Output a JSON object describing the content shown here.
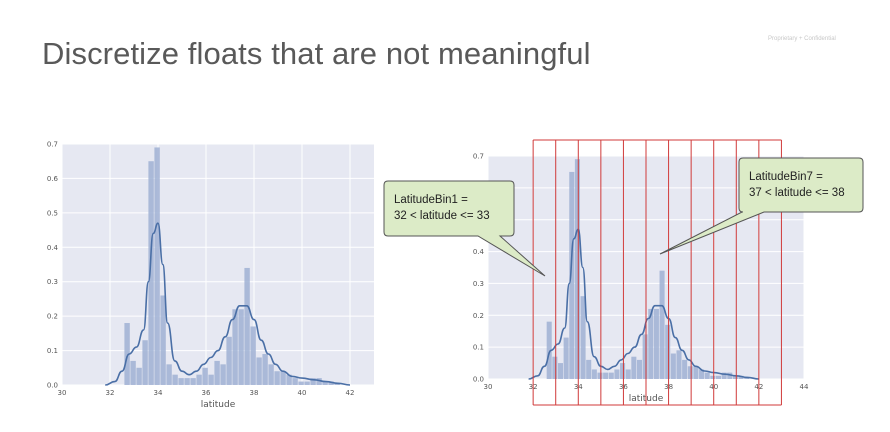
{
  "slide": {
    "title": "Discretize floats that are not meaningful",
    "confidential": "Proprietary + Confidential"
  },
  "colors": {
    "plot_bg": "#e6e8f2",
    "grid": "#ffffff",
    "bar": "#9fb0d4",
    "kde": "#4a6fa6",
    "bin_line": "#d03a3a",
    "callout_fill": "#dcebc7",
    "callout_stroke": "#555555"
  },
  "chart_data": [
    {
      "type": "bar",
      "title": "",
      "xlabel": "latitude",
      "ylabel": "",
      "xlim": [
        30,
        43
      ],
      "ylim": [
        0,
        0.7
      ],
      "xticks": [
        30,
        32,
        34,
        36,
        38,
        40,
        42
      ],
      "yticks": [
        0.0,
        0.1,
        0.2,
        0.3,
        0.4,
        0.5,
        0.6,
        0.7
      ],
      "grid": true,
      "bins": [
        {
          "left": 32.6,
          "height": 0.18
        },
        {
          "left": 32.85,
          "height": 0.07
        },
        {
          "left": 33.1,
          "height": 0.05
        },
        {
          "left": 33.35,
          "height": 0.13
        },
        {
          "left": 33.6,
          "height": 0.65
        },
        {
          "left": 33.85,
          "height": 0.69
        },
        {
          "left": 34.1,
          "height": 0.26
        },
        {
          "left": 34.35,
          "height": 0.06
        },
        {
          "left": 34.6,
          "height": 0.03
        },
        {
          "left": 34.85,
          "height": 0.02
        },
        {
          "left": 35.1,
          "height": 0.02
        },
        {
          "left": 35.35,
          "height": 0.02
        },
        {
          "left": 35.6,
          "height": 0.03
        },
        {
          "left": 35.85,
          "height": 0.05
        },
        {
          "left": 36.1,
          "height": 0.03
        },
        {
          "left": 36.35,
          "height": 0.07
        },
        {
          "left": 36.6,
          "height": 0.06
        },
        {
          "left": 36.85,
          "height": 0.14
        },
        {
          "left": 37.1,
          "height": 0.22
        },
        {
          "left": 37.35,
          "height": 0.22
        },
        {
          "left": 37.6,
          "height": 0.34
        },
        {
          "left": 37.85,
          "height": 0.17
        },
        {
          "left": 38.1,
          "height": 0.08
        },
        {
          "left": 38.35,
          "height": 0.09
        },
        {
          "left": 38.6,
          "height": 0.06
        },
        {
          "left": 38.85,
          "height": 0.04
        },
        {
          "left": 39.1,
          "height": 0.04
        },
        {
          "left": 39.35,
          "height": 0.03
        },
        {
          "left": 39.6,
          "height": 0.02
        },
        {
          "left": 39.85,
          "height": 0.01
        },
        {
          "left": 40.1,
          "height": 0.01
        },
        {
          "left": 40.35,
          "height": 0.02
        },
        {
          "left": 40.6,
          "height": 0.02
        },
        {
          "left": 40.85,
          "height": 0.01
        },
        {
          "left": 41.1,
          "height": 0.01
        },
        {
          "left": 41.35,
          "height": 0.005
        }
      ],
      "bin_width": 0.25,
      "kde": {
        "x": [
          31.8,
          32.2,
          32.5,
          32.8,
          33.1,
          33.4,
          33.6,
          33.8,
          34.0,
          34.2,
          34.4,
          34.7,
          35.0,
          35.3,
          35.6,
          35.9,
          36.2,
          36.5,
          36.8,
          37.1,
          37.4,
          37.7,
          38.0,
          38.3,
          38.6,
          38.9,
          39.2,
          39.6,
          40.0,
          40.5,
          41.0,
          41.5,
          42.0
        ],
        "y": [
          0.0,
          0.01,
          0.04,
          0.09,
          0.11,
          0.16,
          0.3,
          0.44,
          0.47,
          0.35,
          0.18,
          0.07,
          0.04,
          0.03,
          0.04,
          0.06,
          0.08,
          0.1,
          0.14,
          0.19,
          0.23,
          0.23,
          0.19,
          0.13,
          0.09,
          0.06,
          0.04,
          0.025,
          0.02,
          0.015,
          0.01,
          0.005,
          0.0
        ]
      }
    },
    {
      "type": "bar",
      "title": "",
      "xlabel": "latitude",
      "ylabel": "",
      "xlim": [
        30,
        44
      ],
      "ylim": [
        0,
        0.7
      ],
      "xticks": [
        30,
        32,
        34,
        36,
        38,
        40,
        42,
        44
      ],
      "yticks": [
        0.0,
        0.1,
        0.2,
        0.3,
        0.4,
        0.5,
        0.6,
        0.7
      ],
      "grid": true,
      "bin_edges": [
        32,
        33,
        34,
        35,
        36,
        37,
        38,
        39,
        40,
        41,
        42,
        43
      ],
      "annotations": [
        {
          "line1": "LatitudeBin1 =",
          "line2": "32 < latitude <= 33",
          "points_to_lat": 32.5
        },
        {
          "line1": "LatitudeBin7 =",
          "line2": "37 < latitude <= 38",
          "points_to_lat": 37.5
        }
      ]
    }
  ]
}
